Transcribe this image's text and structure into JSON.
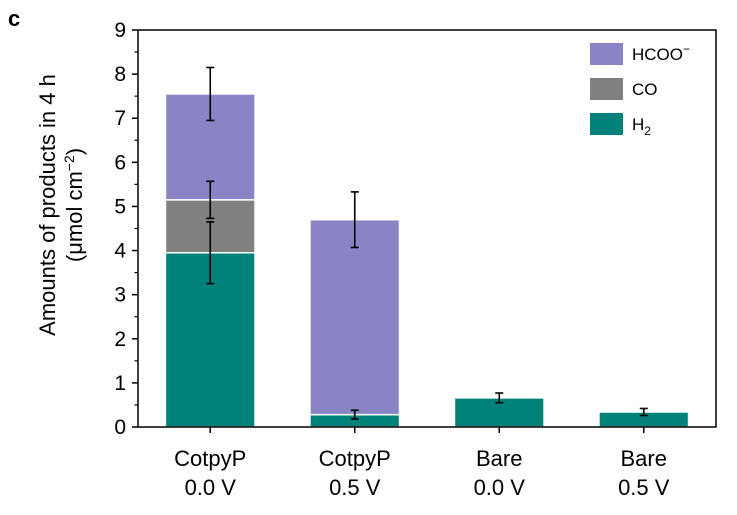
{
  "panel_label": "c",
  "chart_data": {
    "type": "bar",
    "stacked": true,
    "categories": [
      [
        "CotpyP",
        "0.0 V"
      ],
      [
        "CotpyP",
        "0.5 V"
      ],
      [
        "Bare",
        "0.0 V"
      ],
      [
        "Bare",
        "0.5 V"
      ]
    ],
    "series": [
      {
        "name": "H",
        "name_sub": "2",
        "color": "#00827a",
        "values": [
          3.95,
          0.28,
          0.66,
          0.34
        ],
        "errors": [
          0.7,
          0.1,
          0.11,
          0.08
        ]
      },
      {
        "name": "CO",
        "color": "#808080",
        "values": [
          1.2,
          0,
          0,
          0
        ],
        "errors": [
          0.42,
          null,
          null,
          null
        ]
      },
      {
        "name": "HCOO",
        "name_sup": "−",
        "color": "#8a84c7",
        "values": [
          2.4,
          4.42,
          0,
          0
        ],
        "errors": [
          0.6,
          0.63,
          null,
          null
        ]
      }
    ],
    "ylabel_line1": "Amounts of products in 4 h",
    "ylabel_line2_pre": "(μmol cm",
    "ylabel_line2_sup": "−2",
    "ylabel_line2_post": ")",
    "xlabel": "",
    "ylim": [
      0,
      9
    ],
    "yticks": [
      "0",
      "1",
      "2",
      "3",
      "4",
      "5",
      "6",
      "7",
      "8",
      "9"
    ],
    "legend_position": "top-right",
    "grid": false
  }
}
